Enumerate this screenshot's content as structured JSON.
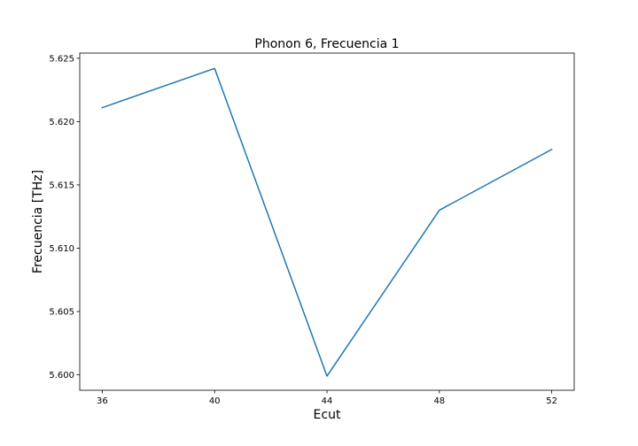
{
  "chart_data": {
    "type": "line",
    "title": "Phonon 6, Frecuencia 1",
    "xlabel": "Ecut",
    "ylabel": "Frecuencia [THz]",
    "x": [
      36,
      40,
      44,
      48,
      52
    ],
    "series": [
      {
        "values": [
          5.6211,
          5.6242,
          5.5999,
          5.613,
          5.6178
        ],
        "color": "#1f77b4"
      }
    ],
    "xticks": [
      36,
      40,
      44,
      48,
      52
    ],
    "xtick_labels": [
      "36",
      "40",
      "44",
      "48",
      "52"
    ],
    "yticks": [
      5.6,
      5.605,
      5.61,
      5.615,
      5.62,
      5.625
    ],
    "ytick_labels": [
      "5.600",
      "5.605",
      "5.610",
      "5.615",
      "5.620",
      "5.625"
    ],
    "xlim": [
      35.2,
      52.8
    ],
    "ylim": [
      5.59878,
      5.62541
    ],
    "grid": false,
    "legend": false
  }
}
